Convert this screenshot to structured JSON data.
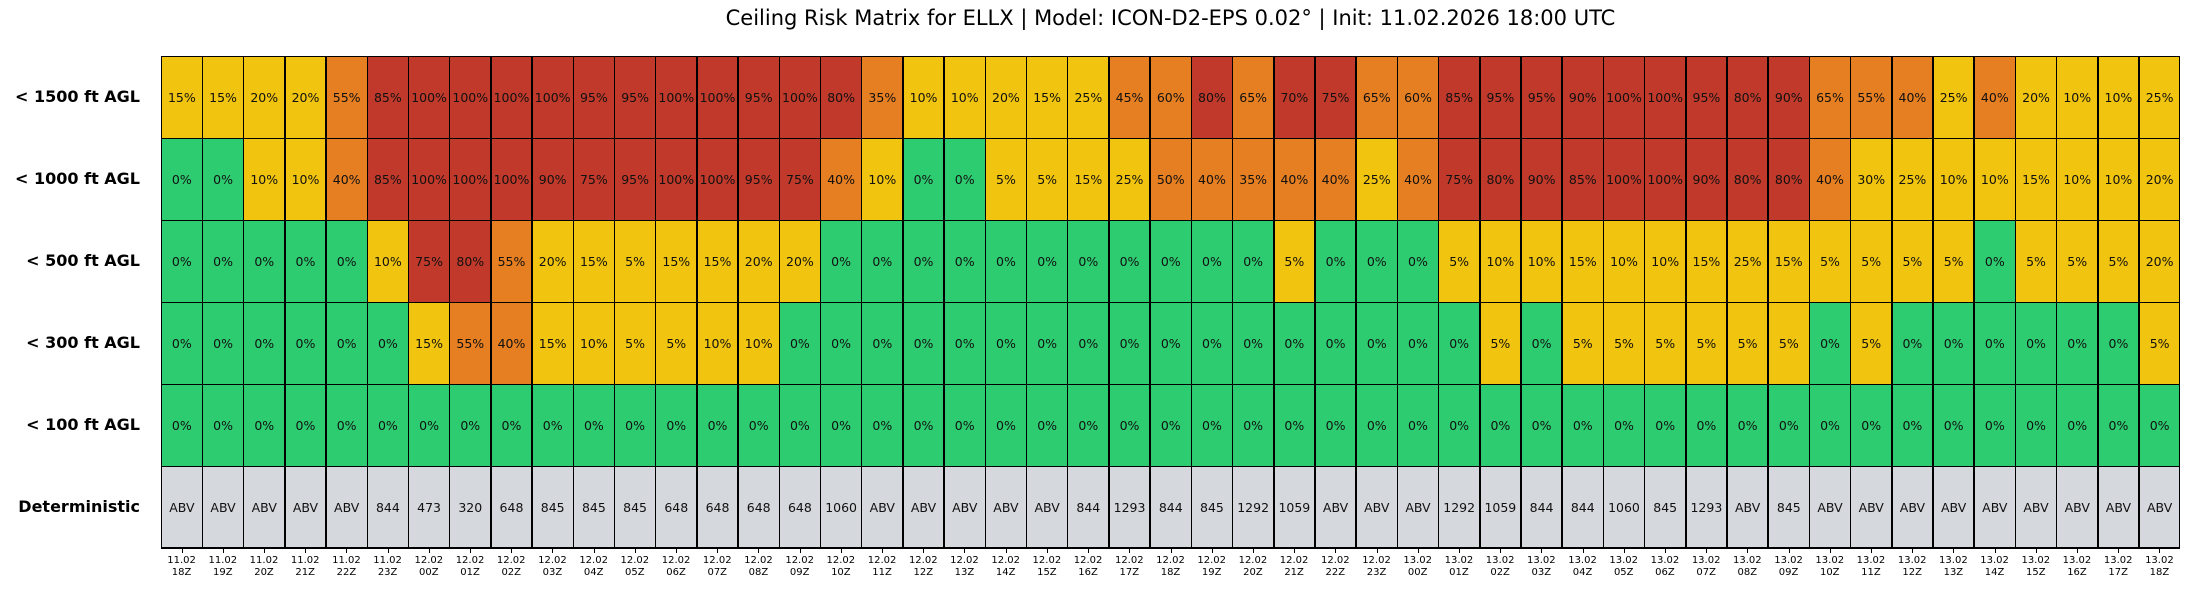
{
  "chart_data": {
    "type": "heatmap",
    "title": "Ceiling Risk Matrix for ELLX | Model: ICON-D2-EPS 0.02° | Init: 11.02.2026 18:00 UTC",
    "rows": [
      "< 1500 ft AGL",
      "< 1000 ft AGL",
      "< 500 ft AGL",
      "< 300 ft AGL",
      "< 100 ft AGL",
      "Deterministic"
    ],
    "times": [
      [
        "11.02",
        "18Z"
      ],
      [
        "11.02",
        "19Z"
      ],
      [
        "11.02",
        "20Z"
      ],
      [
        "11.02",
        "21Z"
      ],
      [
        "11.02",
        "22Z"
      ],
      [
        "11.02",
        "23Z"
      ],
      [
        "12.02",
        "00Z"
      ],
      [
        "12.02",
        "01Z"
      ],
      [
        "12.02",
        "02Z"
      ],
      [
        "12.02",
        "03Z"
      ],
      [
        "12.02",
        "04Z"
      ],
      [
        "12.02",
        "05Z"
      ],
      [
        "12.02",
        "06Z"
      ],
      [
        "12.02",
        "07Z"
      ],
      [
        "12.02",
        "08Z"
      ],
      [
        "12.02",
        "09Z"
      ],
      [
        "12.02",
        "10Z"
      ],
      [
        "12.02",
        "11Z"
      ],
      [
        "12.02",
        "12Z"
      ],
      [
        "12.02",
        "13Z"
      ],
      [
        "12.02",
        "14Z"
      ],
      [
        "12.02",
        "15Z"
      ],
      [
        "12.02",
        "16Z"
      ],
      [
        "12.02",
        "17Z"
      ],
      [
        "12.02",
        "18Z"
      ],
      [
        "12.02",
        "19Z"
      ],
      [
        "12.02",
        "20Z"
      ],
      [
        "12.02",
        "21Z"
      ],
      [
        "12.02",
        "22Z"
      ],
      [
        "12.02",
        "23Z"
      ],
      [
        "13.02",
        "00Z"
      ],
      [
        "13.02",
        "01Z"
      ],
      [
        "13.02",
        "02Z"
      ],
      [
        "13.02",
        "03Z"
      ],
      [
        "13.02",
        "04Z"
      ],
      [
        "13.02",
        "05Z"
      ],
      [
        "13.02",
        "06Z"
      ],
      [
        "13.02",
        "07Z"
      ],
      [
        "13.02",
        "08Z"
      ],
      [
        "13.02",
        "09Z"
      ],
      [
        "13.02",
        "10Z"
      ],
      [
        "13.02",
        "11Z"
      ],
      [
        "13.02",
        "12Z"
      ],
      [
        "13.02",
        "13Z"
      ],
      [
        "13.02",
        "14Z"
      ],
      [
        "13.02",
        "15Z"
      ],
      [
        "13.02",
        "16Z"
      ],
      [
        "13.02",
        "17Z"
      ],
      [
        "13.02",
        "18Z"
      ]
    ],
    "probabilities_percent": [
      [
        15,
        15,
        20,
        20,
        55,
        85,
        100,
        100,
        100,
        100,
        95,
        95,
        100,
        100,
        95,
        100,
        80,
        35,
        10,
        10,
        20,
        15,
        25,
        45,
        60,
        80,
        65,
        70,
        75,
        65,
        60,
        85,
        95,
        95,
        90,
        100,
        100,
        95,
        80,
        90,
        65,
        55,
        40,
        25,
        40,
        20,
        10,
        10,
        25
      ],
      [
        0,
        0,
        10,
        10,
        40,
        85,
        100,
        100,
        100,
        90,
        75,
        95,
        100,
        100,
        95,
        75,
        40,
        10,
        0,
        0,
        5,
        5,
        15,
        25,
        50,
        40,
        35,
        40,
        40,
        25,
        40,
        75,
        80,
        90,
        85,
        100,
        100,
        90,
        80,
        80,
        40,
        30,
        25,
        10,
        10,
        15,
        10,
        10,
        20
      ],
      [
        0,
        0,
        0,
        0,
        0,
        10,
        75,
        80,
        55,
        20,
        15,
        5,
        15,
        15,
        20,
        20,
        0,
        0,
        0,
        0,
        0,
        0,
        0,
        0,
        0,
        0,
        0,
        5,
        0,
        0,
        0,
        5,
        10,
        10,
        15,
        10,
        10,
        15,
        25,
        15,
        5,
        5,
        5,
        5,
        0,
        5,
        5,
        5,
        20
      ],
      [
        0,
        0,
        0,
        0,
        0,
        0,
        15,
        55,
        40,
        15,
        10,
        5,
        5,
        10,
        10,
        0,
        0,
        0,
        0,
        0,
        0,
        0,
        0,
        0,
        0,
        0,
        0,
        0,
        0,
        0,
        0,
        0,
        5,
        0,
        5,
        5,
        5,
        5,
        5,
        5,
        0,
        5,
        0,
        0,
        0,
        0,
        0,
        0,
        5
      ],
      [
        0,
        0,
        0,
        0,
        0,
        0,
        0,
        0,
        0,
        0,
        0,
        0,
        0,
        0,
        0,
        0,
        0,
        0,
        0,
        0,
        0,
        0,
        0,
        0,
        0,
        0,
        0,
        0,
        0,
        0,
        0,
        0,
        0,
        0,
        0,
        0,
        0,
        0,
        0,
        0,
        0,
        0,
        0,
        0,
        0,
        0,
        0,
        0,
        0
      ]
    ],
    "percent_suffix": "%",
    "deterministic": [
      "ABV",
      "ABV",
      "ABV",
      "ABV",
      "ABV",
      "844",
      "473",
      "320",
      "648",
      "845",
      "845",
      "845",
      "648",
      "648",
      "648",
      "648",
      "1060",
      "ABV",
      "ABV",
      "ABV",
      "ABV",
      "ABV",
      "844",
      "1293",
      "844",
      "845",
      "1292",
      "1059",
      "ABV",
      "ABV",
      "ABV",
      "1292",
      "1059",
      "844",
      "844",
      "1060",
      "845",
      "1293",
      "ABV",
      "845",
      "ABV",
      "ABV",
      "ABV",
      "ABV",
      "ABV",
      "ABV",
      "ABV",
      "ABV",
      "ABV"
    ],
    "color_scale": {
      "zero": "#2ecc71",
      "low_max30": "#f1c40f",
      "medium_max65": "#e67e22",
      "high": "#c0392b",
      "deterministic": "#d5d8dc"
    }
  }
}
